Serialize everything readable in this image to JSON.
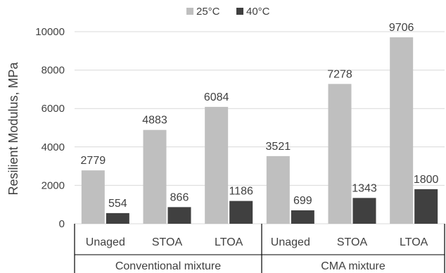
{
  "chart_data": {
    "type": "bar",
    "ylabel": "Resilient Modulus, MPa",
    "ylim": [
      0,
      10000
    ],
    "yticks": [
      0,
      2000,
      4000,
      6000,
      8000,
      10000
    ],
    "grid": true,
    "legend_position": "top",
    "groups": [
      {
        "name": "Conventional mixture",
        "categories": [
          "Unaged",
          "STOA",
          "LTOA"
        ]
      },
      {
        "name": "CMA mixture",
        "categories": [
          "Unaged",
          "STOA",
          "LTOA"
        ]
      }
    ],
    "series": [
      {
        "name": "25°C",
        "color": "#bfbfbf",
        "values": [
          2779,
          4883,
          6084,
          3521,
          7278,
          9706
        ]
      },
      {
        "name": "40°C",
        "color": "#404040",
        "values": [
          554,
          866,
          1186,
          699,
          1343,
          1800
        ]
      }
    ],
    "data_labels": {
      "s0": [
        "2779",
        "4883",
        "6084",
        "3521",
        "7278",
        "9706"
      ],
      "s1": [
        "554",
        "866",
        "1186",
        "699",
        "1343",
        "1800"
      ]
    }
  }
}
